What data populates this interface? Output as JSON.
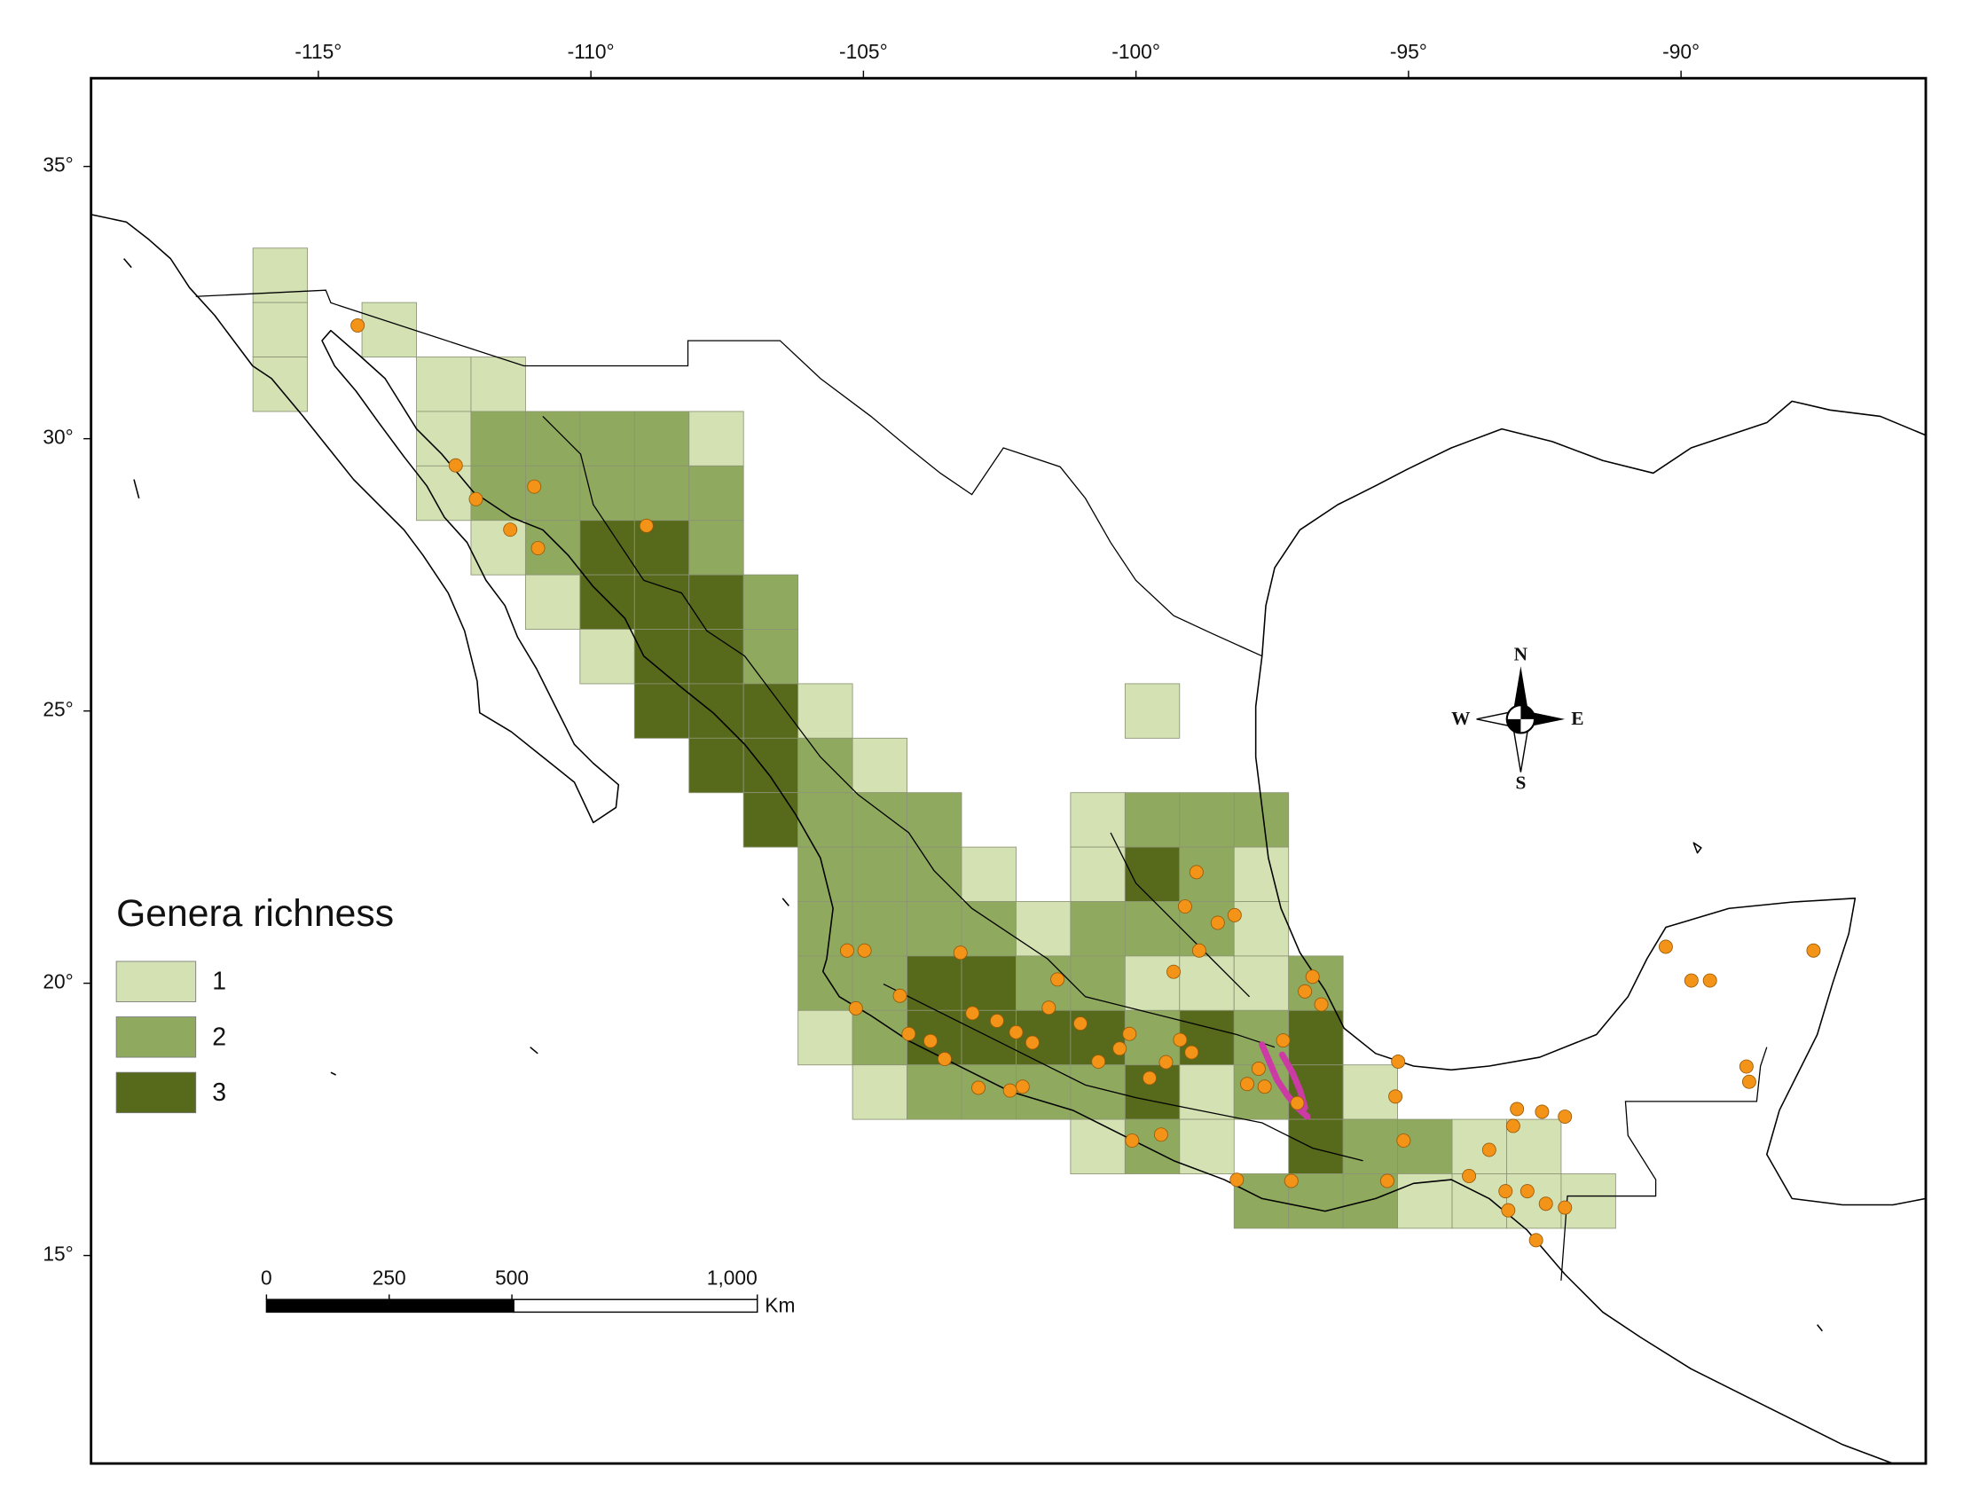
{
  "axes": {
    "lon_range": [
      -119.17,
      -85.51
    ],
    "lat_range": [
      11.18,
      36.62
    ],
    "lon_ticks": [
      {
        "value": -115,
        "label": "-115°"
      },
      {
        "value": -110,
        "label": "-110°"
      },
      {
        "value": -105,
        "label": "-105°"
      },
      {
        "value": -100,
        "label": "-100°"
      },
      {
        "value": -95,
        "label": "-95°"
      },
      {
        "value": -90,
        "label": "-90°"
      }
    ],
    "lat_ticks": [
      {
        "value": 35,
        "label": "35°"
      },
      {
        "value": 30,
        "label": "30°"
      },
      {
        "value": 25,
        "label": "25°"
      },
      {
        "value": 20,
        "label": "20°"
      },
      {
        "value": 15,
        "label": "15°"
      }
    ]
  },
  "legend": {
    "title": "Genera richness",
    "classes": [
      {
        "value": 1,
        "color": "#d3e1b3"
      },
      {
        "value": 2,
        "color": "#8fa95e"
      },
      {
        "value": 3,
        "color": "#57691a"
      }
    ]
  },
  "cells": [
    {
      "lon": -115.7,
      "lat": 33,
      "richness": 1
    },
    {
      "lon": -115.7,
      "lat": 32,
      "richness": 1
    },
    {
      "lon": -113.7,
      "lat": 32,
      "richness": 1
    },
    {
      "lon": -115.7,
      "lat": 31,
      "richness": 1
    },
    {
      "lon": -112.7,
      "lat": 31,
      "richness": 1
    },
    {
      "lon": -111.7,
      "lat": 31,
      "richness": 1
    },
    {
      "lon": -112.7,
      "lat": 30,
      "richness": 1
    },
    {
      "lon": -111.7,
      "lat": 30,
      "richness": 2
    },
    {
      "lon": -110.7,
      "lat": 30,
      "richness": 2
    },
    {
      "lon": -109.7,
      "lat": 30,
      "richness": 2
    },
    {
      "lon": -108.7,
      "lat": 30,
      "richness": 2
    },
    {
      "lon": -107.7,
      "lat": 30,
      "richness": 1
    },
    {
      "lon": -112.7,
      "lat": 29,
      "richness": 1
    },
    {
      "lon": -111.7,
      "lat": 29,
      "richness": 2
    },
    {
      "lon": -110.7,
      "lat": 29,
      "richness": 2
    },
    {
      "lon": -109.7,
      "lat": 29,
      "richness": 2
    },
    {
      "lon": -108.7,
      "lat": 29,
      "richness": 2
    },
    {
      "lon": -107.7,
      "lat": 29,
      "richness": 2
    },
    {
      "lon": -111.7,
      "lat": 28,
      "richness": 1
    },
    {
      "lon": -110.7,
      "lat": 28,
      "richness": 2
    },
    {
      "lon": -109.7,
      "lat": 28,
      "richness": 3
    },
    {
      "lon": -108.7,
      "lat": 28,
      "richness": 3
    },
    {
      "lon": -107.7,
      "lat": 28,
      "richness": 2
    },
    {
      "lon": -110.7,
      "lat": 27,
      "richness": 1
    },
    {
      "lon": -109.7,
      "lat": 27,
      "richness": 3
    },
    {
      "lon": -108.7,
      "lat": 27,
      "richness": 3
    },
    {
      "lon": -107.7,
      "lat": 27,
      "richness": 3
    },
    {
      "lon": -106.7,
      "lat": 27,
      "richness": 2
    },
    {
      "lon": -109.7,
      "lat": 26,
      "richness": 1
    },
    {
      "lon": -108.7,
      "lat": 26,
      "richness": 3
    },
    {
      "lon": -107.7,
      "lat": 26,
      "richness": 3
    },
    {
      "lon": -106.7,
      "lat": 26,
      "richness": 2
    },
    {
      "lon": -108.7,
      "lat": 25,
      "richness": 3
    },
    {
      "lon": -107.7,
      "lat": 25,
      "richness": 3
    },
    {
      "lon": -106.7,
      "lat": 25,
      "richness": 3
    },
    {
      "lon": -105.7,
      "lat": 25,
      "richness": 1
    },
    {
      "lon": -99.7,
      "lat": 25,
      "richness": 1
    },
    {
      "lon": -107.7,
      "lat": 24,
      "richness": 3
    },
    {
      "lon": -106.7,
      "lat": 24,
      "richness": 3
    },
    {
      "lon": -105.7,
      "lat": 24,
      "richness": 2
    },
    {
      "lon": -104.7,
      "lat": 24,
      "richness": 1
    },
    {
      "lon": -106.7,
      "lat": 23,
      "richness": 3
    },
    {
      "lon": -105.7,
      "lat": 23,
      "richness": 2
    },
    {
      "lon": -104.7,
      "lat": 23,
      "richness": 2
    },
    {
      "lon": -103.7,
      "lat": 23,
      "richness": 2
    },
    {
      "lon": -100.7,
      "lat": 23,
      "richness": 1
    },
    {
      "lon": -99.7,
      "lat": 23,
      "richness": 2
    },
    {
      "lon": -98.7,
      "lat": 23,
      "richness": 2
    },
    {
      "lon": -97.7,
      "lat": 23,
      "richness": 2
    },
    {
      "lon": -105.7,
      "lat": 22,
      "richness": 2
    },
    {
      "lon": -104.7,
      "lat": 22,
      "richness": 2
    },
    {
      "lon": -103.7,
      "lat": 22,
      "richness": 2
    },
    {
      "lon": -102.7,
      "lat": 22,
      "richness": 1
    },
    {
      "lon": -100.7,
      "lat": 22,
      "richness": 1
    },
    {
      "lon": -99.7,
      "lat": 22,
      "richness": 3
    },
    {
      "lon": -98.7,
      "lat": 22,
      "richness": 2
    },
    {
      "lon": -97.7,
      "lat": 22,
      "richness": 1
    },
    {
      "lon": -105.7,
      "lat": 21,
      "richness": 2
    },
    {
      "lon": -104.7,
      "lat": 21,
      "richness": 2
    },
    {
      "lon": -103.7,
      "lat": 21,
      "richness": 2
    },
    {
      "lon": -102.7,
      "lat": 21,
      "richness": 2
    },
    {
      "lon": -101.7,
      "lat": 21,
      "richness": 1
    },
    {
      "lon": -100.7,
      "lat": 21,
      "richness": 2
    },
    {
      "lon": -99.7,
      "lat": 21,
      "richness": 2
    },
    {
      "lon": -98.7,
      "lat": 21,
      "richness": 2
    },
    {
      "lon": -97.7,
      "lat": 21,
      "richness": 1
    },
    {
      "lon": -105.7,
      "lat": 20,
      "richness": 2
    },
    {
      "lon": -104.7,
      "lat": 20,
      "richness": 2
    },
    {
      "lon": -103.7,
      "lat": 20,
      "richness": 3
    },
    {
      "lon": -102.7,
      "lat": 20,
      "richness": 3
    },
    {
      "lon": -101.7,
      "lat": 20,
      "richness": 2
    },
    {
      "lon": -100.7,
      "lat": 20,
      "richness": 2
    },
    {
      "lon": -99.7,
      "lat": 20,
      "richness": 1
    },
    {
      "lon": -98.7,
      "lat": 20,
      "richness": 1
    },
    {
      "lon": -97.7,
      "lat": 20,
      "richness": 1
    },
    {
      "lon": -96.7,
      "lat": 20,
      "richness": 2
    },
    {
      "lon": -105.7,
      "lat": 19,
      "richness": 1
    },
    {
      "lon": -104.7,
      "lat": 19,
      "richness": 2
    },
    {
      "lon": -103.7,
      "lat": 19,
      "richness": 3
    },
    {
      "lon": -102.7,
      "lat": 19,
      "richness": 3
    },
    {
      "lon": -101.7,
      "lat": 19,
      "richness": 3
    },
    {
      "lon": -100.7,
      "lat": 19,
      "richness": 3
    },
    {
      "lon": -99.7,
      "lat": 19,
      "richness": 2
    },
    {
      "lon": -98.7,
      "lat": 19,
      "richness": 3
    },
    {
      "lon": -97.7,
      "lat": 19,
      "richness": 2
    },
    {
      "lon": -96.7,
      "lat": 19,
      "richness": 3
    },
    {
      "lon": -104.7,
      "lat": 18,
      "richness": 1
    },
    {
      "lon": -103.7,
      "lat": 18,
      "richness": 2
    },
    {
      "lon": -102.7,
      "lat": 18,
      "richness": 2
    },
    {
      "lon": -101.7,
      "lat": 18,
      "richness": 2
    },
    {
      "lon": -100.7,
      "lat": 18,
      "richness": 2
    },
    {
      "lon": -99.7,
      "lat": 18,
      "richness": 3
    },
    {
      "lon": -98.7,
      "lat": 18,
      "richness": 1
    },
    {
      "lon": -97.7,
      "lat": 18,
      "richness": 2
    },
    {
      "lon": -96.7,
      "lat": 18,
      "richness": 3
    },
    {
      "lon": -95.7,
      "lat": 18,
      "richness": 1
    },
    {
      "lon": -100.7,
      "lat": 17,
      "richness": 1
    },
    {
      "lon": -99.7,
      "lat": 17,
      "richness": 2
    },
    {
      "lon": -98.7,
      "lat": 17,
      "richness": 1
    },
    {
      "lon": -96.7,
      "lat": 17,
      "richness": 3
    },
    {
      "lon": -95.7,
      "lat": 17,
      "richness": 2
    },
    {
      "lon": -94.7,
      "lat": 17,
      "richness": 2
    },
    {
      "lon": -93.7,
      "lat": 17,
      "richness": 1
    },
    {
      "lon": -92.7,
      "lat": 17,
      "richness": 1
    },
    {
      "lon": -97.7,
      "lat": 16,
      "richness": 2
    },
    {
      "lon": -96.7,
      "lat": 16,
      "richness": 2
    },
    {
      "lon": -95.7,
      "lat": 16,
      "richness": 2
    },
    {
      "lon": -94.7,
      "lat": 16,
      "richness": 1
    },
    {
      "lon": -93.7,
      "lat": 16,
      "richness": 1
    },
    {
      "lon": -92.7,
      "lat": 16,
      "richness": 1
    },
    {
      "lon": -91.7,
      "lat": 16,
      "richness": 1
    }
  ],
  "points": {
    "color": "#f39419",
    "locations": [
      {
        "lon": -114.28,
        "lat": 32.08
      },
      {
        "lon": -112.48,
        "lat": 29.51
      },
      {
        "lon": -112.11,
        "lat": 28.89
      },
      {
        "lon": -111.04,
        "lat": 29.12
      },
      {
        "lon": -111.48,
        "lat": 28.33
      },
      {
        "lon": -110.97,
        "lat": 27.99
      },
      {
        "lon": -108.98,
        "lat": 28.4
      },
      {
        "lon": -98.89,
        "lat": 22.04
      },
      {
        "lon": -99.1,
        "lat": 21.41
      },
      {
        "lon": -98.5,
        "lat": 21.11
      },
      {
        "lon": -98.19,
        "lat": 21.25
      },
      {
        "lon": -98.84,
        "lat": 20.6
      },
      {
        "lon": -99.31,
        "lat": 20.21
      },
      {
        "lon": -96.76,
        "lat": 20.12
      },
      {
        "lon": -96.6,
        "lat": 19.61
      },
      {
        "lon": -95.19,
        "lat": 18.56
      },
      {
        "lon": -95.24,
        "lat": 17.92
      },
      {
        "lon": -90.28,
        "lat": 20.67
      },
      {
        "lon": -89.81,
        "lat": 20.05
      },
      {
        "lon": -89.47,
        "lat": 20.05
      },
      {
        "lon": -87.57,
        "lat": 20.6
      },
      {
        "lon": -88.8,
        "lat": 18.47
      },
      {
        "lon": -88.75,
        "lat": 18.19
      },
      {
        "lon": -105.3,
        "lat": 20.6
      },
      {
        "lon": -104.98,
        "lat": 20.6
      },
      {
        "lon": -105.14,
        "lat": 19.54
      },
      {
        "lon": -104.33,
        "lat": 19.77
      },
      {
        "lon": -103.77,
        "lat": 18.94
      },
      {
        "lon": -103.22,
        "lat": 20.56
      },
      {
        "lon": -102.55,
        "lat": 19.31
      },
      {
        "lon": -102.08,
        "lat": 18.1
      },
      {
        "lon": -101.44,
        "lat": 20.07
      },
      {
        "lon": -101.02,
        "lat": 19.26
      },
      {
        "lon": -100.69,
        "lat": 18.56
      },
      {
        "lon": -100.12,
        "lat": 19.07
      },
      {
        "lon": -99.75,
        "lat": 18.26
      },
      {
        "lon": -99.19,
        "lat": 18.96
      },
      {
        "lon": -98.98,
        "lat": 18.73
      },
      {
        "lon": -97.75,
        "lat": 18.43
      },
      {
        "lon": -97.64,
        "lat": 18.1
      },
      {
        "lon": -97.96,
        "lat": 18.15
      },
      {
        "lon": -97.04,
        "lat": 17.8
      },
      {
        "lon": -97.15,
        "lat": 16.37
      },
      {
        "lon": -98.15,
        "lat": 16.39
      },
      {
        "lon": -99.54,
        "lat": 17.22
      },
      {
        "lon": -100.07,
        "lat": 17.11
      },
      {
        "lon": -95.39,
        "lat": 16.37
      },
      {
        "lon": -95.09,
        "lat": 17.11
      },
      {
        "lon": -93.89,
        "lat": 16.46
      },
      {
        "lon": -93.52,
        "lat": 16.94
      },
      {
        "lon": -93.08,
        "lat": 17.38
      },
      {
        "lon": -93.01,
        "lat": 17.69
      },
      {
        "lon": -92.55,
        "lat": 17.64
      },
      {
        "lon": -92.13,
        "lat": 17.55
      },
      {
        "lon": -93.17,
        "lat": 15.83
      },
      {
        "lon": -92.82,
        "lat": 16.18
      },
      {
        "lon": -92.48,
        "lat": 15.95
      },
      {
        "lon": -92.66,
        "lat": 15.28
      },
      {
        "lon": -92.13,
        "lat": 15.88
      },
      {
        "lon": -93.22,
        "lat": 16.18
      },
      {
        "lon": -102.89,
        "lat": 18.08
      },
      {
        "lon": -102.31,
        "lat": 18.03
      },
      {
        "lon": -103.51,
        "lat": 18.61
      },
      {
        "lon": -101.9,
        "lat": 18.91
      },
      {
        "lon": -104.17,
        "lat": 19.07
      },
      {
        "lon": -103.0,
        "lat": 19.45
      },
      {
        "lon": -101.6,
        "lat": 19.55
      },
      {
        "lon": -100.3,
        "lat": 18.8
      },
      {
        "lon": -99.45,
        "lat": 18.55
      },
      {
        "lon": -102.2,
        "lat": 19.1
      },
      {
        "lon": -96.9,
        "lat": 19.85
      },
      {
        "lon": -97.3,
        "lat": 18.95
      }
    ]
  },
  "scale_bar": {
    "ticks": [
      0,
      250,
      500,
      {
        "value": 1000,
        "label": "1,000"
      }
    ],
    "unit": "Km"
  },
  "compass": {
    "north": "N",
    "south": "S",
    "east": "E",
    "west": "W"
  }
}
